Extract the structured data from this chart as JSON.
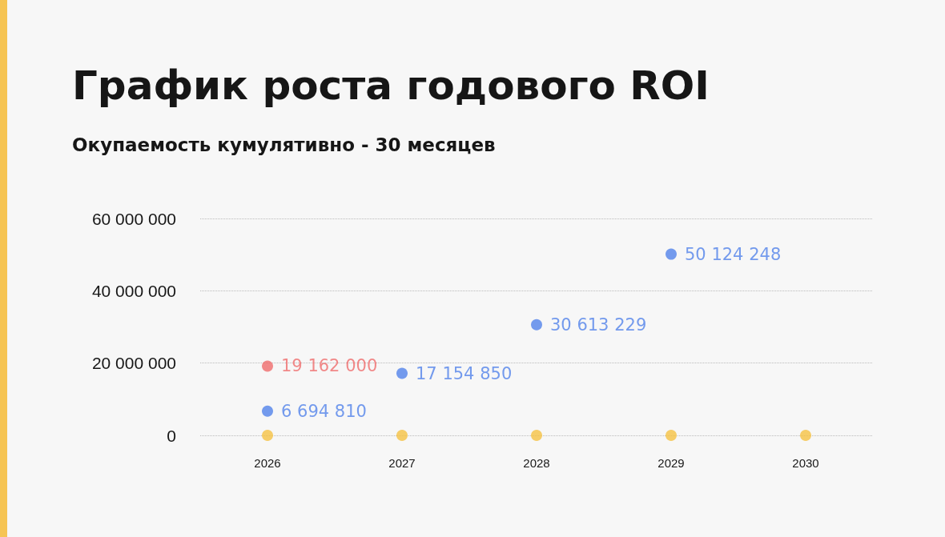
{
  "chart_data": {
    "type": "scatter",
    "title": "График роста годового ROI",
    "subtitle": "Окупаемость кумулятивно - 30 месяцев",
    "categories": [
      "2026",
      "2027",
      "2028",
      "2029",
      "2030"
    ],
    "ylim": [
      0,
      60000000
    ],
    "yticks": [
      {
        "value": 0,
        "label": "0"
      },
      {
        "value": 20000000,
        "label": "20 000 000"
      },
      {
        "value": 40000000,
        "label": "40 000 000"
      },
      {
        "value": 60000000,
        "label": "60 000 000"
      }
    ],
    "grid": "y",
    "marker": "circle",
    "series": [
      {
        "color": "#f5c244",
        "values": [
          0,
          0,
          0,
          0,
          0
        ]
      },
      {
        "color": "#ef6b6b",
        "values": [
          19162000,
          null,
          null,
          null,
          null
        ],
        "value_labels": [
          "19 162 000",
          null,
          null,
          null,
          null
        ]
      },
      {
        "color": "#5182ea",
        "values": [
          6694810,
          17154850,
          30613229,
          50124248,
          null
        ],
        "value_labels": [
          "6 694 810",
          "17 154 850",
          "30 613 229",
          "50 124 248",
          null
        ]
      }
    ]
  }
}
